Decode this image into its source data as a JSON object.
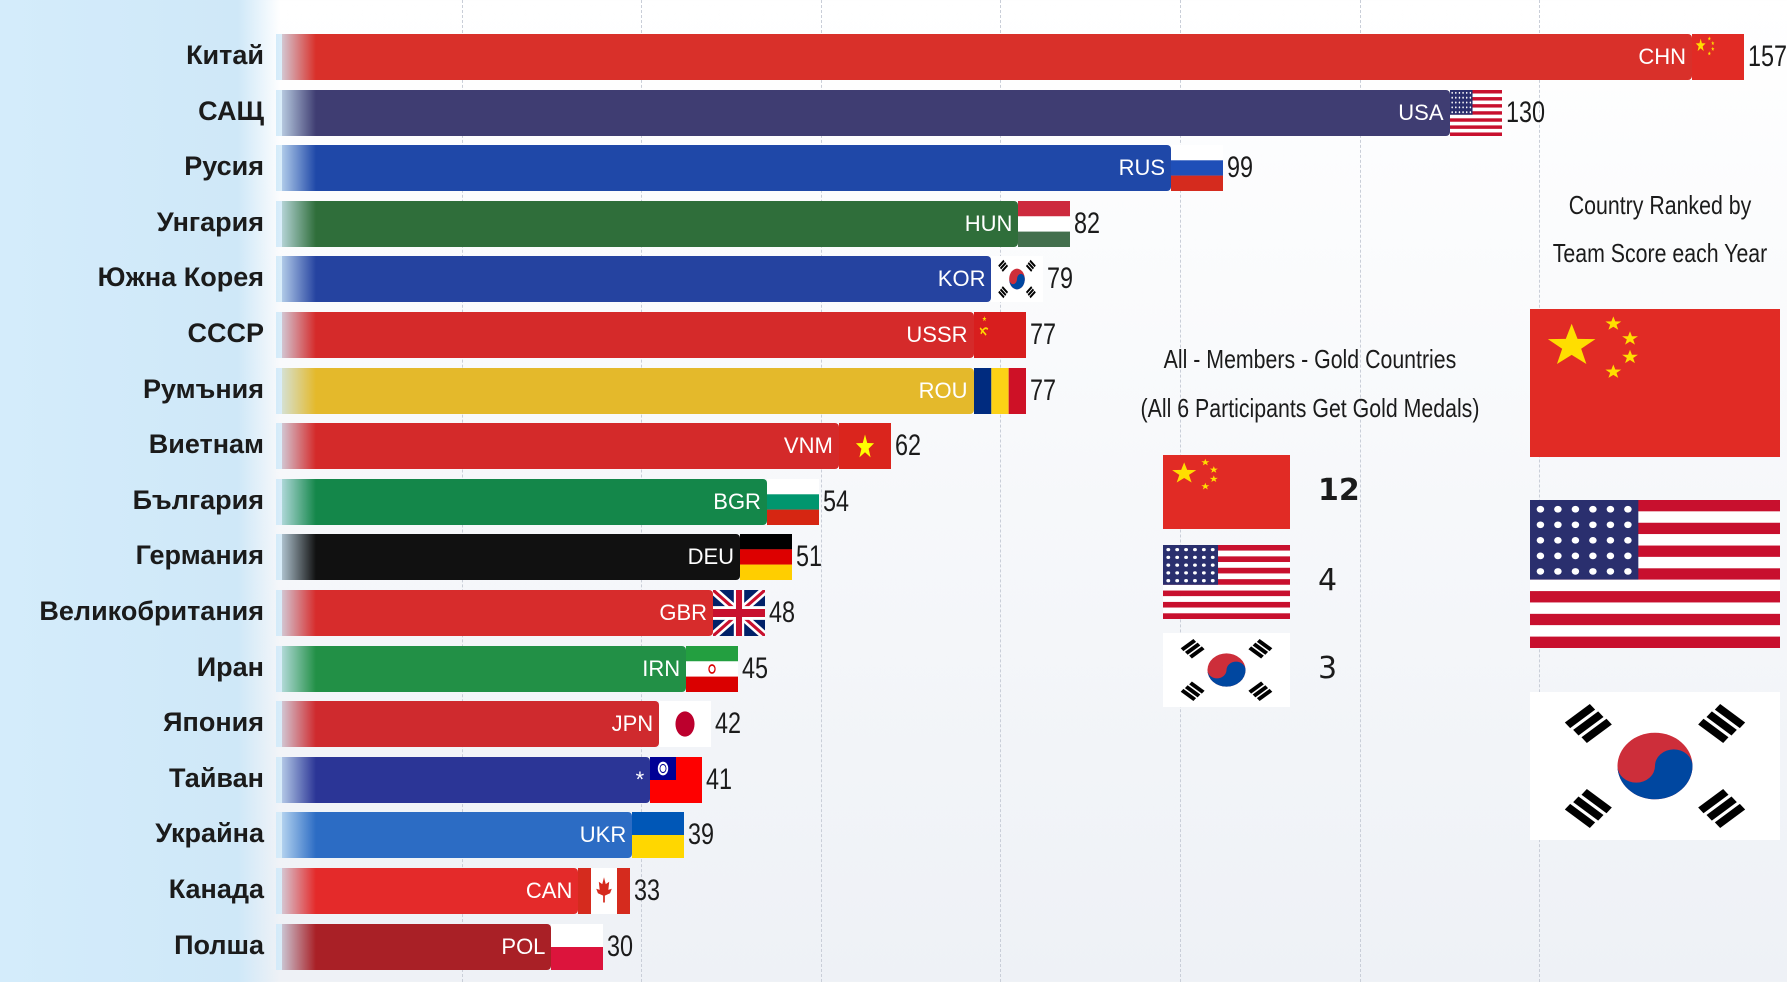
{
  "chart_data": {
    "type": "bar",
    "orientation": "horizontal",
    "categories": [
      "Китай",
      "САЩ",
      "Русия",
      "Унгария",
      "Южна Корея",
      "СССР",
      "Румъния",
      "Виетнам",
      "България",
      "Германия",
      "Великобритания",
      "Иран",
      "Япония",
      "Тайван",
      "Украйна",
      "Канада",
      "Полша"
    ],
    "codes": [
      "CHN",
      "USA",
      "RUS",
      "HUN",
      "KOR",
      "USSR",
      "ROU",
      "VNM",
      "BGR",
      "DEU",
      "GBR",
      "IRN",
      "JPN",
      "*",
      "UKR",
      "CAN",
      "POL"
    ],
    "values": [
      157,
      130,
      99,
      82,
      79,
      77,
      77,
      62,
      54,
      51,
      48,
      45,
      42,
      41,
      39,
      33,
      30
    ],
    "colors": [
      "#d9302a",
      "#3f3d72",
      "#1f48a8",
      "#2f6e3a",
      "#2543a0",
      "#d52a2a",
      "#e4b92b",
      "#d42a2a",
      "#14874a",
      "#111111",
      "#d72c2c",
      "#229046",
      "#cf2a2e",
      "#2b3596",
      "#2c6cc4",
      "#e42a2a",
      "#a92026"
    ],
    "flags": [
      "cn",
      "us",
      "ru",
      "hu",
      "kr",
      "su",
      "ro",
      "vn",
      "bg",
      "de",
      "gb",
      "ir",
      "jp",
      "tw",
      "ua",
      "ca",
      "pl"
    ],
    "xlim": [
      0,
      160
    ],
    "grid": true
  },
  "legend": {
    "title_line1": "All - Members - Gold Countries",
    "title_line2": "(All 6 Participants Get Gold Medals)",
    "items": [
      {
        "flag": "cn",
        "count": "12"
      },
      {
        "flag": "us",
        "count": "4"
      },
      {
        "flag": "kr",
        "count": "3"
      }
    ]
  },
  "ranking": {
    "title_line1": "Country Ranked by",
    "title_line2": "Team Score each Year",
    "flags": [
      "cn",
      "us",
      "kr"
    ]
  }
}
